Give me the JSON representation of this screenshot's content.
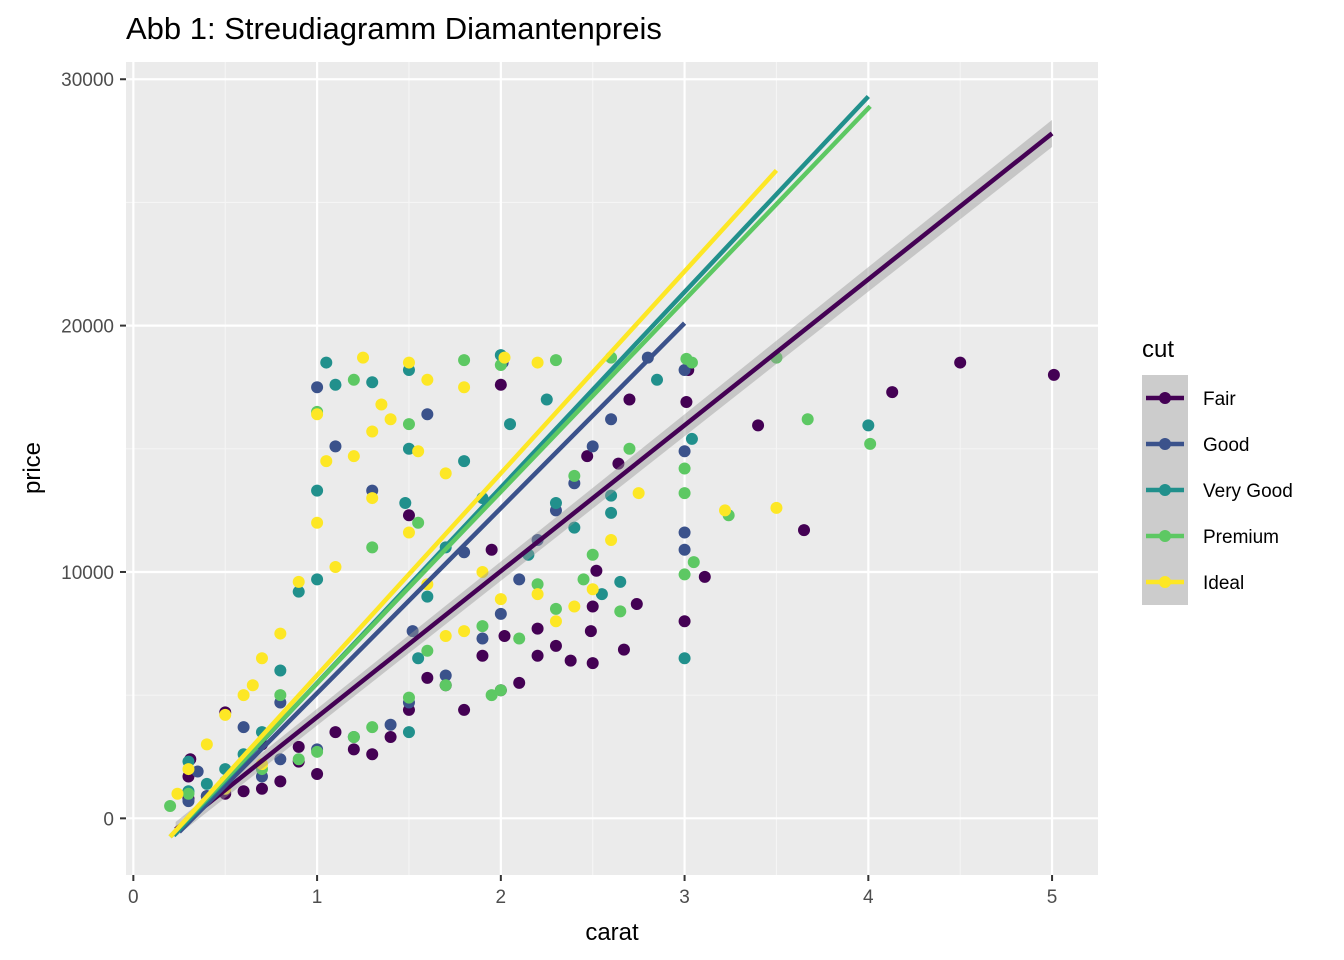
{
  "chart_data": {
    "type": "scatter",
    "title": "Abb 1: Streudiagramm Diamantenpreis",
    "xlabel": "carat",
    "ylabel": "price",
    "xlim": [
      -0.04,
      5.25
    ],
    "ylim": [
      -2300,
      30700
    ],
    "x_ticks": [
      0,
      1,
      2,
      3,
      4,
      5
    ],
    "x_tick_labels": [
      "0",
      "1",
      "2",
      "3",
      "4",
      "5"
    ],
    "y_ticks": [
      0,
      10000,
      20000,
      30000
    ],
    "y_tick_labels": [
      "0",
      "10000",
      "20000",
      "30000"
    ],
    "grid": true,
    "legend": {
      "title": "cut",
      "position": "right"
    },
    "series": [
      {
        "name": "Fair",
        "color": "#440154",
        "trend": {
          "x0": 0.23,
          "y0": -450,
          "x1": 5.0,
          "y1": 27800
        },
        "points": [
          [
            5.01,
            18000
          ],
          [
            4.5,
            18500
          ],
          [
            4.13,
            17300
          ],
          [
            3.65,
            11700
          ],
          [
            3.4,
            15950
          ],
          [
            3.11,
            9800
          ],
          [
            3.01,
            16900
          ],
          [
            3.02,
            18200
          ],
          [
            3.0,
            8000
          ],
          [
            2.74,
            8700
          ],
          [
            2.67,
            6850
          ],
          [
            2.5,
            8600
          ],
          [
            2.52,
            10050
          ],
          [
            2.5,
            6300
          ],
          [
            2.49,
            7600
          ],
          [
            2.3,
            7000
          ],
          [
            2.2,
            6600
          ],
          [
            2.1,
            5500
          ],
          [
            2.0,
            5200
          ],
          [
            1.9,
            6600
          ],
          [
            1.8,
            4400
          ],
          [
            1.7,
            5400
          ],
          [
            1.5,
            4400
          ],
          [
            1.4,
            3300
          ],
          [
            1.3,
            2600
          ],
          [
            1.2,
            2800
          ],
          [
            1.0,
            1800
          ],
          [
            0.9,
            2300
          ],
          [
            0.8,
            1500
          ],
          [
            0.7,
            1200
          ],
          [
            0.6,
            1100
          ],
          [
            0.5,
            1000
          ],
          [
            0.4,
            900
          ],
          [
            0.3,
            800
          ],
          [
            0.3,
            1700
          ],
          [
            0.31,
            2400
          ],
          [
            0.5,
            4300
          ],
          [
            0.7,
            3000
          ],
          [
            0.9,
            2900
          ],
          [
            1.1,
            3500
          ],
          [
            1.6,
            5700
          ],
          [
            2.02,
            7400
          ],
          [
            2.2,
            7700
          ],
          [
            2.38,
            6400
          ],
          [
            2.64,
            14400
          ],
          [
            2.47,
            14700
          ],
          [
            2.7,
            17000
          ],
          [
            2.0,
            17600
          ],
          [
            1.95,
            10900
          ],
          [
            1.5,
            12300
          ]
        ]
      },
      {
        "name": "Good",
        "color": "#3b528b",
        "trend": {
          "x0": 0.25,
          "y0": -550,
          "x1": 3.0,
          "y1": 20100
        },
        "points": [
          [
            3.0,
            18200
          ],
          [
            3.0,
            14900
          ],
          [
            3.0,
            11600
          ],
          [
            3.0,
            10900
          ],
          [
            2.8,
            18700
          ],
          [
            2.6,
            16200
          ],
          [
            2.5,
            15100
          ],
          [
            2.4,
            13600
          ],
          [
            2.3,
            12500
          ],
          [
            2.2,
            11300
          ],
          [
            2.1,
            9700
          ],
          [
            2.0,
            8300
          ],
          [
            1.9,
            7300
          ],
          [
            1.7,
            5800
          ],
          [
            1.5,
            4700
          ],
          [
            1.4,
            3800
          ],
          [
            1.2,
            3300
          ],
          [
            1.0,
            2800
          ],
          [
            0.8,
            2400
          ],
          [
            0.7,
            1700
          ],
          [
            0.5,
            1400
          ],
          [
            0.4,
            900
          ],
          [
            0.3,
            700
          ],
          [
            0.35,
            1900
          ],
          [
            0.6,
            3700
          ],
          [
            0.8,
            4700
          ],
          [
            1.0,
            17500
          ],
          [
            1.1,
            15100
          ],
          [
            1.3,
            13300
          ],
          [
            1.6,
            16400
          ],
          [
            2.01,
            18500
          ],
          [
            1.8,
            10800
          ],
          [
            1.52,
            7600
          ]
        ]
      },
      {
        "name": "Very Good",
        "color": "#21908c",
        "trend": {
          "x0": 0.22,
          "y0": -700,
          "x1": 4.0,
          "y1": 29300
        },
        "points": [
          [
            4.0,
            15950
          ],
          [
            3.04,
            15400
          ],
          [
            3.0,
            6500
          ],
          [
            2.85,
            17800
          ],
          [
            2.65,
            9600
          ],
          [
            2.6,
            13100
          ],
          [
            2.6,
            12400
          ],
          [
            2.55,
            9100
          ],
          [
            2.4,
            11800
          ],
          [
            2.3,
            12800
          ],
          [
            2.15,
            10700
          ],
          [
            2.0,
            18800
          ],
          [
            1.9,
            13000
          ],
          [
            1.7,
            11000
          ],
          [
            1.6,
            9000
          ],
          [
            1.55,
            6500
          ],
          [
            1.5,
            3500
          ],
          [
            1.5,
            15000
          ],
          [
            1.3,
            17700
          ],
          [
            1.05,
            18500
          ],
          [
            1.0,
            13300
          ],
          [
            0.9,
            9200
          ],
          [
            0.8,
            6000
          ],
          [
            0.7,
            3500
          ],
          [
            0.6,
            2600
          ],
          [
            0.5,
            2000
          ],
          [
            0.4,
            1400
          ],
          [
            0.3,
            1100
          ],
          [
            0.3,
            2300
          ],
          [
            1.1,
            17600
          ],
          [
            1.5,
            18200
          ],
          [
            1.8,
            14500
          ],
          [
            2.05,
            16000
          ],
          [
            2.25,
            17000
          ],
          [
            1.0,
            9700
          ],
          [
            1.48,
            12800
          ]
        ]
      },
      {
        "name": "Premium",
        "color": "#5dc863",
        "trend": {
          "x0": 0.2,
          "y0": -750,
          "x1": 4.01,
          "y1": 28900
        },
        "points": [
          [
            4.01,
            15200
          ],
          [
            3.67,
            16200
          ],
          [
            3.5,
            18700
          ],
          [
            3.24,
            12300
          ],
          [
            3.01,
            18650
          ],
          [
            3.04,
            18500
          ],
          [
            3.0,
            14200
          ],
          [
            3.0,
            13200
          ],
          [
            3.0,
            9900
          ],
          [
            3.05,
            10400
          ],
          [
            2.65,
            8400
          ],
          [
            2.5,
            10700
          ],
          [
            2.45,
            9700
          ],
          [
            2.3,
            8500
          ],
          [
            2.2,
            9500
          ],
          [
            2.1,
            7300
          ],
          [
            2.0,
            5200
          ],
          [
            1.95,
            5000
          ],
          [
            1.9,
            7800
          ],
          [
            1.7,
            5400
          ],
          [
            1.6,
            6800
          ],
          [
            1.5,
            4900
          ],
          [
            1.3,
            3700
          ],
          [
            1.2,
            3300
          ],
          [
            1.0,
            2700
          ],
          [
            0.9,
            2400
          ],
          [
            0.7,
            2000
          ],
          [
            0.5,
            1500
          ],
          [
            0.3,
            1000
          ],
          [
            0.2,
            500
          ],
          [
            1.0,
            16500
          ],
          [
            1.2,
            17800
          ],
          [
            1.5,
            16000
          ],
          [
            1.8,
            18600
          ],
          [
            2.0,
            18400
          ],
          [
            2.3,
            18600
          ],
          [
            2.6,
            18700
          ],
          [
            2.7,
            15000
          ],
          [
            1.3,
            11000
          ],
          [
            1.55,
            12000
          ],
          [
            2.4,
            13900
          ],
          [
            0.8,
            5000
          ]
        ]
      },
      {
        "name": "Ideal",
        "color": "#fde725",
        "trend": {
          "x0": 0.2,
          "y0": -750,
          "x1": 3.5,
          "y1": 26300
        },
        "points": [
          [
            3.5,
            12600
          ],
          [
            3.22,
            12500
          ],
          [
            2.75,
            13200
          ],
          [
            2.6,
            11300
          ],
          [
            2.5,
            9300
          ],
          [
            2.4,
            8600
          ],
          [
            2.3,
            8000
          ],
          [
            2.2,
            9100
          ],
          [
            2.0,
            8900
          ],
          [
            1.9,
            10000
          ],
          [
            1.8,
            7600
          ],
          [
            1.7,
            7400
          ],
          [
            1.6,
            9500
          ],
          [
            1.5,
            11600
          ],
          [
            1.3,
            13000
          ],
          [
            1.2,
            14700
          ],
          [
            1.0,
            16400
          ],
          [
            1.05,
            14500
          ],
          [
            1.25,
            18700
          ],
          [
            1.5,
            18500
          ],
          [
            1.6,
            17800
          ],
          [
            1.8,
            17500
          ],
          [
            2.02,
            18700
          ],
          [
            1.4,
            16200
          ],
          [
            1.1,
            10200
          ],
          [
            0.9,
            9600
          ],
          [
            0.8,
            7500
          ],
          [
            0.7,
            6500
          ],
          [
            0.6,
            5000
          ],
          [
            0.5,
            4200
          ],
          [
            0.4,
            3000
          ],
          [
            0.3,
            2000
          ],
          [
            0.24,
            1000
          ],
          [
            0.5,
            1200
          ],
          [
            0.7,
            2200
          ],
          [
            1.0,
            12000
          ],
          [
            1.3,
            15700
          ],
          [
            1.7,
            14000
          ],
          [
            1.35,
            16800
          ],
          [
            1.55,
            14900
          ],
          [
            2.2,
            18500
          ],
          [
            0.65,
            5400
          ]
        ]
      }
    ]
  }
}
